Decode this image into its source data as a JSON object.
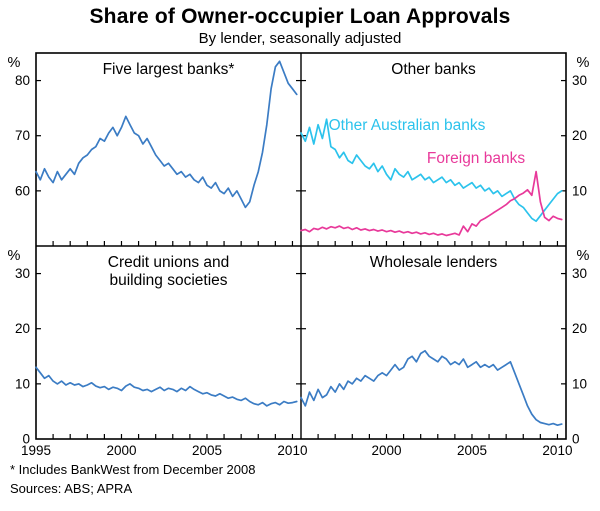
{
  "title": "Share of Owner-occupier Loan Approvals",
  "subtitle": "By lender, seasonally adjusted",
  "footnote": "*  Includes BankWest from December 2008",
  "sources": "Sources: ABS; APRA",
  "chart_data": {
    "type": "line",
    "unit": "%",
    "x_start": 1995,
    "x_step": 0.25,
    "x_end": 2010.5,
    "x_ticks": [
      1995,
      2000,
      2005,
      2010
    ],
    "grid": false,
    "panels": [
      {
        "id": "five-largest-banks",
        "row": 0,
        "col": 0,
        "title_lines": [
          "Five largest banks*"
        ],
        "ylim": [
          50,
          85
        ],
        "yticks": [
          60,
          70,
          80
        ],
        "series": [
          {
            "name": "Five largest banks",
            "color": "#3b7cc4",
            "values": [
              63.5,
              62.0,
              64.0,
              62.5,
              61.5,
              63.5,
              62.0,
              63.0,
              64.0,
              63.0,
              65.0,
              66.0,
              66.5,
              67.5,
              68.0,
              69.5,
              69.0,
              70.5,
              71.5,
              70.0,
              71.5,
              73.5,
              72.0,
              70.5,
              70.0,
              68.5,
              69.5,
              68.0,
              66.5,
              65.5,
              64.5,
              65.0,
              64.0,
              63.0,
              63.5,
              62.5,
              63.0,
              62.0,
              61.5,
              62.5,
              61.0,
              60.5,
              61.5,
              60.0,
              59.5,
              60.5,
              59.0,
              60.0,
              58.5,
              57.0,
              58.0,
              61.0,
              63.5,
              67.0,
              72.0,
              78.5,
              82.5,
              83.5,
              81.5,
              79.5,
              78.5,
              77.5
            ]
          }
        ]
      },
      {
        "id": "other-banks",
        "row": 0,
        "col": 1,
        "title_lines": [
          "Other banks"
        ],
        "ylim": [
          0,
          35
        ],
        "yticks": [
          10,
          20,
          30
        ],
        "series": [
          {
            "name": "Other Australian banks",
            "color": "#2cc3ec",
            "label_xy": [
              407,
              83
            ],
            "values": [
              20.5,
              19.0,
              21.5,
              18.5,
              22.0,
              19.5,
              23.0,
              18.0,
              17.5,
              16.0,
              17.0,
              15.5,
              15.0,
              16.5,
              15.5,
              14.5,
              14.0,
              15.0,
              13.5,
              14.5,
              13.0,
              12.0,
              14.0,
              13.0,
              12.5,
              13.5,
              12.0,
              12.5,
              13.0,
              12.0,
              12.5,
              11.5,
              12.0,
              12.5,
              11.5,
              12.0,
              11.0,
              11.5,
              10.5,
              11.0,
              11.5,
              10.5,
              11.0,
              10.0,
              10.5,
              9.5,
              10.0,
              9.0,
              9.5,
              10.0,
              8.5,
              7.5,
              7.0,
              6.0,
              5.0,
              4.5,
              5.5,
              6.5,
              7.5,
              8.5,
              9.5,
              10.0
            ]
          },
          {
            "name": "Foreign banks",
            "color": "#e8399a",
            "label_xy": [
              476,
              116
            ],
            "values": [
              2.8,
              3.0,
              2.6,
              3.2,
              3.0,
              3.4,
              3.1,
              3.5,
              3.3,
              3.6,
              3.2,
              3.4,
              3.0,
              3.3,
              2.9,
              3.1,
              2.8,
              3.0,
              2.7,
              2.9,
              2.6,
              2.8,
              2.5,
              2.7,
              2.4,
              2.6,
              2.3,
              2.5,
              2.2,
              2.4,
              2.1,
              2.3,
              2.0,
              2.2,
              1.9,
              2.1,
              2.3,
              2.0,
              3.6,
              2.6,
              4.0,
              3.6,
              4.6,
              5.0,
              5.5,
              6.0,
              6.5,
              7.0,
              7.5,
              8.2,
              8.6,
              9.2,
              9.6,
              10.2,
              9.2,
              13.5,
              8.0,
              5.2,
              4.6,
              5.4,
              5.0,
              4.8
            ]
          }
        ]
      },
      {
        "id": "credit-unions-building-societies",
        "row": 1,
        "col": 0,
        "title_lines": [
          "Credit unions and",
          "building societies"
        ],
        "ylim": [
          0,
          35
        ],
        "yticks": [
          0,
          10,
          20,
          30
        ],
        "series": [
          {
            "name": "Credit unions and building societies",
            "color": "#3b7cc4",
            "values": [
              13.0,
              12.0,
              11.0,
              11.5,
              10.5,
              10.0,
              10.5,
              9.8,
              10.2,
              9.8,
              10.0,
              9.5,
              9.8,
              10.2,
              9.6,
              9.3,
              9.5,
              9.0,
              9.4,
              9.2,
              8.8,
              9.6,
              10.0,
              9.4,
              9.2,
              8.8,
              9.0,
              8.6,
              9.0,
              9.4,
              8.8,
              9.2,
              9.0,
              8.6,
              9.2,
              8.8,
              9.5,
              9.0,
              8.6,
              8.2,
              8.4,
              8.0,
              7.8,
              8.2,
              7.8,
              7.4,
              7.6,
              7.2,
              7.0,
              7.4,
              6.8,
              6.4,
              6.2,
              6.6,
              6.0,
              6.4,
              6.6,
              6.2,
              6.8,
              6.5,
              6.6,
              6.8
            ]
          }
        ]
      },
      {
        "id": "wholesale-lenders",
        "row": 1,
        "col": 1,
        "title_lines": [
          "Wholesale lenders"
        ],
        "ylim": [
          0,
          35
        ],
        "yticks": [
          0,
          10,
          20,
          30
        ],
        "series": [
          {
            "name": "Wholesale lenders",
            "color": "#3b7cc4",
            "values": [
              7.5,
              6.0,
              8.5,
              7.0,
              9.0,
              7.5,
              8.0,
              9.5,
              8.5,
              10.0,
              9.0,
              10.5,
              10.0,
              11.0,
              10.5,
              11.5,
              11.0,
              10.5,
              11.5,
              12.0,
              11.5,
              12.5,
              13.5,
              12.5,
              13.0,
              14.5,
              15.0,
              14.0,
              15.5,
              16.0,
              15.0,
              14.5,
              14.0,
              15.0,
              14.5,
              13.5,
              14.0,
              13.5,
              14.5,
              13.0,
              13.5,
              14.0,
              13.0,
              13.5,
              13.0,
              13.5,
              12.5,
              13.0,
              13.5,
              14.0,
              12.0,
              10.0,
              8.0,
              6.0,
              4.5,
              3.5,
              3.0,
              2.8,
              2.6,
              2.8,
              2.5,
              2.7
            ]
          }
        ]
      }
    ]
  },
  "colors": {
    "axis": "#000000",
    "main_blue": "#3b7cc4",
    "cyan": "#2cc3ec",
    "pink": "#e8399a"
  }
}
